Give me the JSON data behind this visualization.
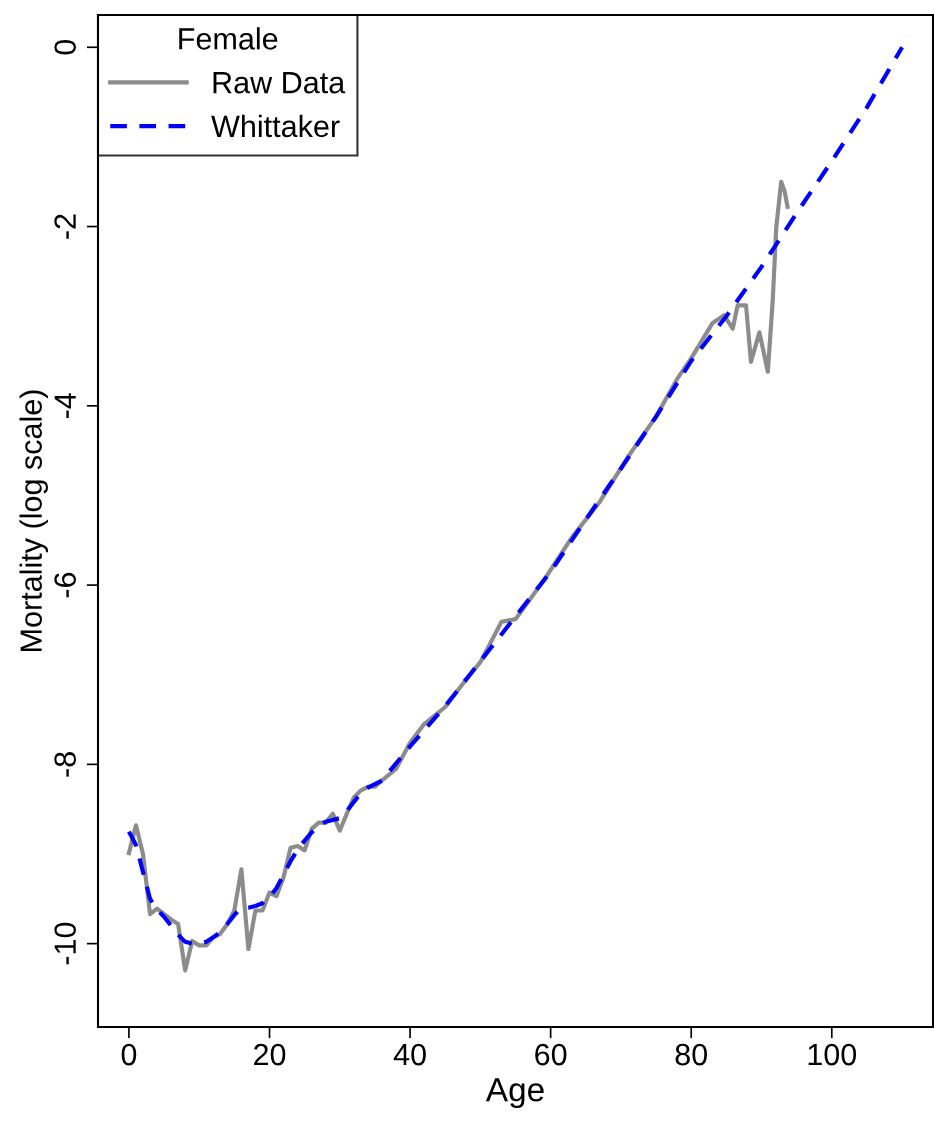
{
  "chart_data": {
    "type": "line",
    "xlabel": "Age",
    "ylabel": "Mortality (log scale)",
    "legend_title": "Female",
    "legend": "top left",
    "grid": false,
    "xlim": [
      -4.4,
      114.4
    ],
    "xticks": [
      0,
      20,
      40,
      60,
      80,
      100
    ],
    "ylim": [
      -10.93,
      0.36
    ],
    "yticks": [
      {
        "value": 0,
        "label": "0"
      },
      {
        "value": -2,
        "label": "-2"
      },
      {
        "value": -4,
        "label": "-4"
      },
      {
        "value": -6,
        "label": "-6"
      },
      {
        "value": -8,
        "label": "-8"
      },
      {
        "value": -10,
        "label": "-10"
      }
    ],
    "series": [
      {
        "name": "Raw Data",
        "color": "#8c8c8c",
        "line_style": "solid",
        "x": [
          0,
          1,
          2,
          3,
          4,
          5,
          6,
          7,
          8,
          9,
          10,
          11,
          12,
          13,
          14,
          15,
          16,
          17,
          18,
          19,
          20,
          21,
          22,
          23,
          24,
          25,
          26,
          27,
          28,
          29,
          30,
          31,
          32,
          33,
          34,
          35,
          36,
          38,
          40,
          42,
          45,
          48,
          50,
          53,
          55,
          59,
          63,
          67,
          71,
          75,
          78,
          80,
          83,
          84.7,
          85.9,
          86.6,
          87.8,
          88.5,
          89.7,
          90.9,
          91.6,
          92.1,
          92.8,
          93.3,
          93.7
        ],
        "values": [
          -8.99,
          -8.68,
          -9.0,
          -9.67,
          -9.61,
          -9.67,
          -9.73,
          -9.78,
          -10.3,
          -9.97,
          -10.02,
          -10.02,
          -9.93,
          -9.89,
          -9.78,
          -9.63,
          -9.17,
          -10.06,
          -9.63,
          -9.63,
          -9.43,
          -9.47,
          -9.26,
          -8.93,
          -8.91,
          -8.96,
          -8.72,
          -8.65,
          -8.65,
          -8.55,
          -8.74,
          -8.55,
          -8.37,
          -8.29,
          -8.25,
          -8.25,
          -8.18,
          -8.05,
          -7.76,
          -7.55,
          -7.36,
          -7.05,
          -6.86,
          -6.41,
          -6.38,
          -5.95,
          -5.47,
          -5.07,
          -4.57,
          -4.12,
          -3.7,
          -3.47,
          -3.08,
          -2.99,
          -3.14,
          -2.88,
          -2.88,
          -3.51,
          -3.18,
          -3.62,
          -2.82,
          -2.01,
          -1.5,
          -1.61,
          -1.78
        ]
      },
      {
        "name": "Whittaker",
        "color": "#0000ff",
        "line_style": "dashed",
        "x": [
          0,
          1,
          2,
          3,
          4,
          5,
          6,
          7,
          8,
          9,
          10,
          11,
          12,
          13,
          14,
          15,
          16,
          17,
          18,
          19,
          20,
          21,
          22,
          23,
          24,
          25,
          26,
          27,
          28,
          29,
          30,
          31,
          32,
          33,
          34,
          35,
          36,
          40,
          45,
          50,
          55,
          60,
          65,
          70,
          75,
          80,
          85,
          90,
          95,
          100,
          105,
          110
        ],
        "values": [
          -8.75,
          -8.9,
          -9.2,
          -9.5,
          -9.62,
          -9.7,
          -9.8,
          -9.9,
          -9.98,
          -10.0,
          -10.0,
          -9.98,
          -9.93,
          -9.87,
          -9.78,
          -9.68,
          -9.6,
          -9.6,
          -9.58,
          -9.55,
          -9.48,
          -9.38,
          -9.23,
          -9.08,
          -8.95,
          -8.85,
          -8.76,
          -8.68,
          -8.64,
          -8.62,
          -8.6,
          -8.52,
          -8.42,
          -8.32,
          -8.26,
          -8.22,
          -8.18,
          -7.8,
          -7.35,
          -6.85,
          -6.35,
          -5.85,
          -5.27,
          -4.7,
          -4.12,
          -3.5,
          -3.0,
          -2.45,
          -1.85,
          -1.27,
          -0.67,
          0
        ]
      }
    ]
  }
}
